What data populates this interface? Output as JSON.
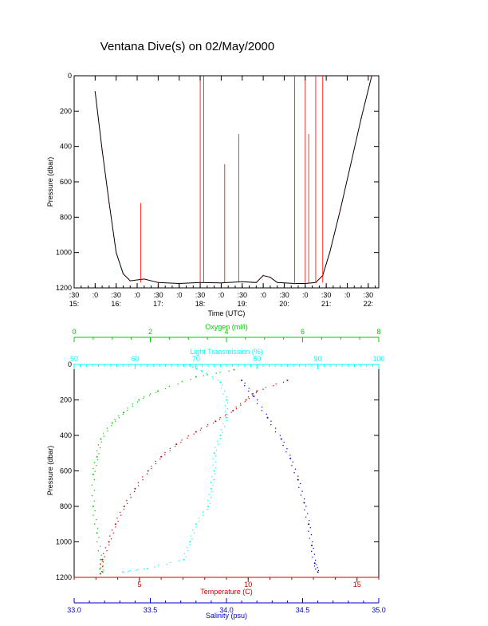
{
  "title": "Ventana Dive(s) on 02/May/2000",
  "chart_data": [
    {
      "type": "line",
      "xlabel": "Time (UTC)",
      "ylabel": "Pressure (dbar)",
      "xlim": [
        "15:30",
        "22:45"
      ],
      "ylim": [
        1200,
        0
      ],
      "x_tick_labels_top": [
        ":30",
        ":0",
        ":30",
        ":0",
        ":30",
        ":0",
        ":30",
        ":0",
        ":30",
        ":0",
        ":30",
        ":0",
        ":30",
        ":0",
        ":30"
      ],
      "x_tick_labels_bottom": [
        "15:",
        "16:",
        "17:",
        "18:",
        "19:",
        "20:",
        "21:",
        "22:"
      ],
      "y_ticks": [
        0,
        200,
        400,
        600,
        800,
        1000,
        1200
      ],
      "series": [
        {
          "color": "#000000",
          "points": [
            [
              "16:00",
              90
            ],
            [
              "16:10",
              420
            ],
            [
              "16:20",
              720
            ],
            [
              "16:30",
              1000
            ],
            [
              "16:40",
              1120
            ],
            [
              "16:50",
              1160
            ],
            [
              "17:10",
              1150
            ],
            [
              "17:30",
              1170
            ],
            [
              "18:00",
              1175
            ],
            [
              "18:30",
              1170
            ],
            [
              "19:00",
              1172
            ],
            [
              "19:30",
              1165
            ],
            [
              "19:50",
              1170
            ],
            [
              "20:00",
              1130
            ],
            [
              "20:10",
              1140
            ],
            [
              "20:20",
              1170
            ],
            [
              "20:45",
              1175
            ],
            [
              "21:00",
              1175
            ],
            [
              "21:15",
              1170
            ],
            [
              "21:25",
              1130
            ],
            [
              "21:35",
              1000
            ],
            [
              "21:50",
              760
            ],
            [
              "22:05",
              500
            ],
            [
              "22:20",
              240
            ],
            [
              "22:35",
              0
            ]
          ]
        },
        {
          "color": "#ff0000",
          "style": "spikes",
          "spikes": [
            [
              "17:05",
              720
            ],
            [
              "18:30",
              0
            ],
            [
              "18:35",
              0
            ],
            [
              "19:05",
              500
            ],
            [
              "19:25",
              330
            ],
            [
              "20:45",
              0
            ],
            [
              "21:00",
              0
            ],
            [
              "21:05",
              330
            ],
            [
              "21:15",
              0
            ],
            [
              "21:25",
              0
            ]
          ]
        }
      ]
    },
    {
      "type": "scatter",
      "ylabel": "Pressure (dbar)",
      "ylim": [
        1200,
        0
      ],
      "y_ticks": [
        0,
        200,
        400,
        600,
        800,
        1000,
        1200
      ],
      "axes": [
        {
          "label": "Oxygen (ml/l)",
          "color": "#00cc00",
          "position": "top",
          "range": [
            0,
            8
          ],
          "ticks": [
            0,
            2,
            4,
            6,
            8
          ]
        },
        {
          "label": "Light Transmission (%)",
          "color": "#00ffff",
          "position": "top",
          "range": [
            50,
            100
          ],
          "ticks": [
            50,
            60,
            70,
            80,
            90,
            100
          ]
        },
        {
          "label": "Temperature (C)",
          "color": "#cc0000",
          "position": "bottom",
          "range": [
            2,
            16
          ],
          "ticks": [
            5,
            10,
            15
          ]
        },
        {
          "label": "Salinity (psu)",
          "color": "#0000cc",
          "position": "bottom",
          "range": [
            33.0,
            35.0
          ],
          "ticks": [
            "33.0",
            "33.5",
            "34.0",
            "34.5",
            "35.0"
          ]
        }
      ],
      "series": [
        {
          "axis": "Oxygen (ml/l)",
          "color": "#00cc00",
          "points": [
            [
              4.2,
              30
            ],
            [
              3.2,
              70
            ],
            [
              2.2,
              150
            ],
            [
              1.7,
              200
            ],
            [
              1.3,
              270
            ],
            [
              1.0,
              330
            ],
            [
              0.7,
              420
            ],
            [
              0.6,
              520
            ],
            [
              0.5,
              620
            ],
            [
              0.5,
              800
            ],
            [
              0.6,
              950
            ],
            [
              0.7,
              1100
            ],
            [
              0.75,
              1170
            ]
          ]
        },
        {
          "axis": "Light Transmission (%)",
          "color": "#00ffff",
          "points": [
            [
              69,
              5
            ],
            [
              71,
              40
            ],
            [
              74,
              100
            ],
            [
              75,
              200
            ],
            [
              75,
              300
            ],
            [
              74,
              400
            ],
            [
              73,
              500
            ],
            [
              73,
              600
            ],
            [
              72.5,
              700
            ],
            [
              72,
              800
            ],
            [
              70,
              900
            ],
            [
              69,
              1000
            ],
            [
              68,
              1100
            ],
            [
              62,
              1150
            ],
            [
              58,
              1170
            ]
          ]
        },
        {
          "axis": "Temperature (C)",
          "color": "#cc0000",
          "points": [
            [
              11.8,
              90
            ],
            [
              10.4,
              150
            ],
            [
              9.9,
              200
            ],
            [
              9.3,
              260
            ],
            [
              8.5,
              320
            ],
            [
              7.6,
              380
            ],
            [
              6.7,
              450
            ],
            [
              6.0,
              520
            ],
            [
              5.4,
              600
            ],
            [
              4.8,
              700
            ],
            [
              4.3,
              800
            ],
            [
              3.9,
              900
            ],
            [
              3.6,
              1000
            ],
            [
              3.3,
              1100
            ],
            [
              3.2,
              1180
            ]
          ]
        },
        {
          "axis": "Salinity (psu)",
          "color": "#0000cc",
          "points": [
            [
              34.1,
              90
            ],
            [
              34.18,
              180
            ],
            [
              34.27,
              300
            ],
            [
              34.36,
              420
            ],
            [
              34.42,
              530
            ],
            [
              34.47,
              650
            ],
            [
              34.51,
              780
            ],
            [
              34.54,
              900
            ],
            [
              34.56,
              1020
            ],
            [
              34.58,
              1120
            ],
            [
              34.6,
              1170
            ]
          ]
        }
      ]
    }
  ]
}
